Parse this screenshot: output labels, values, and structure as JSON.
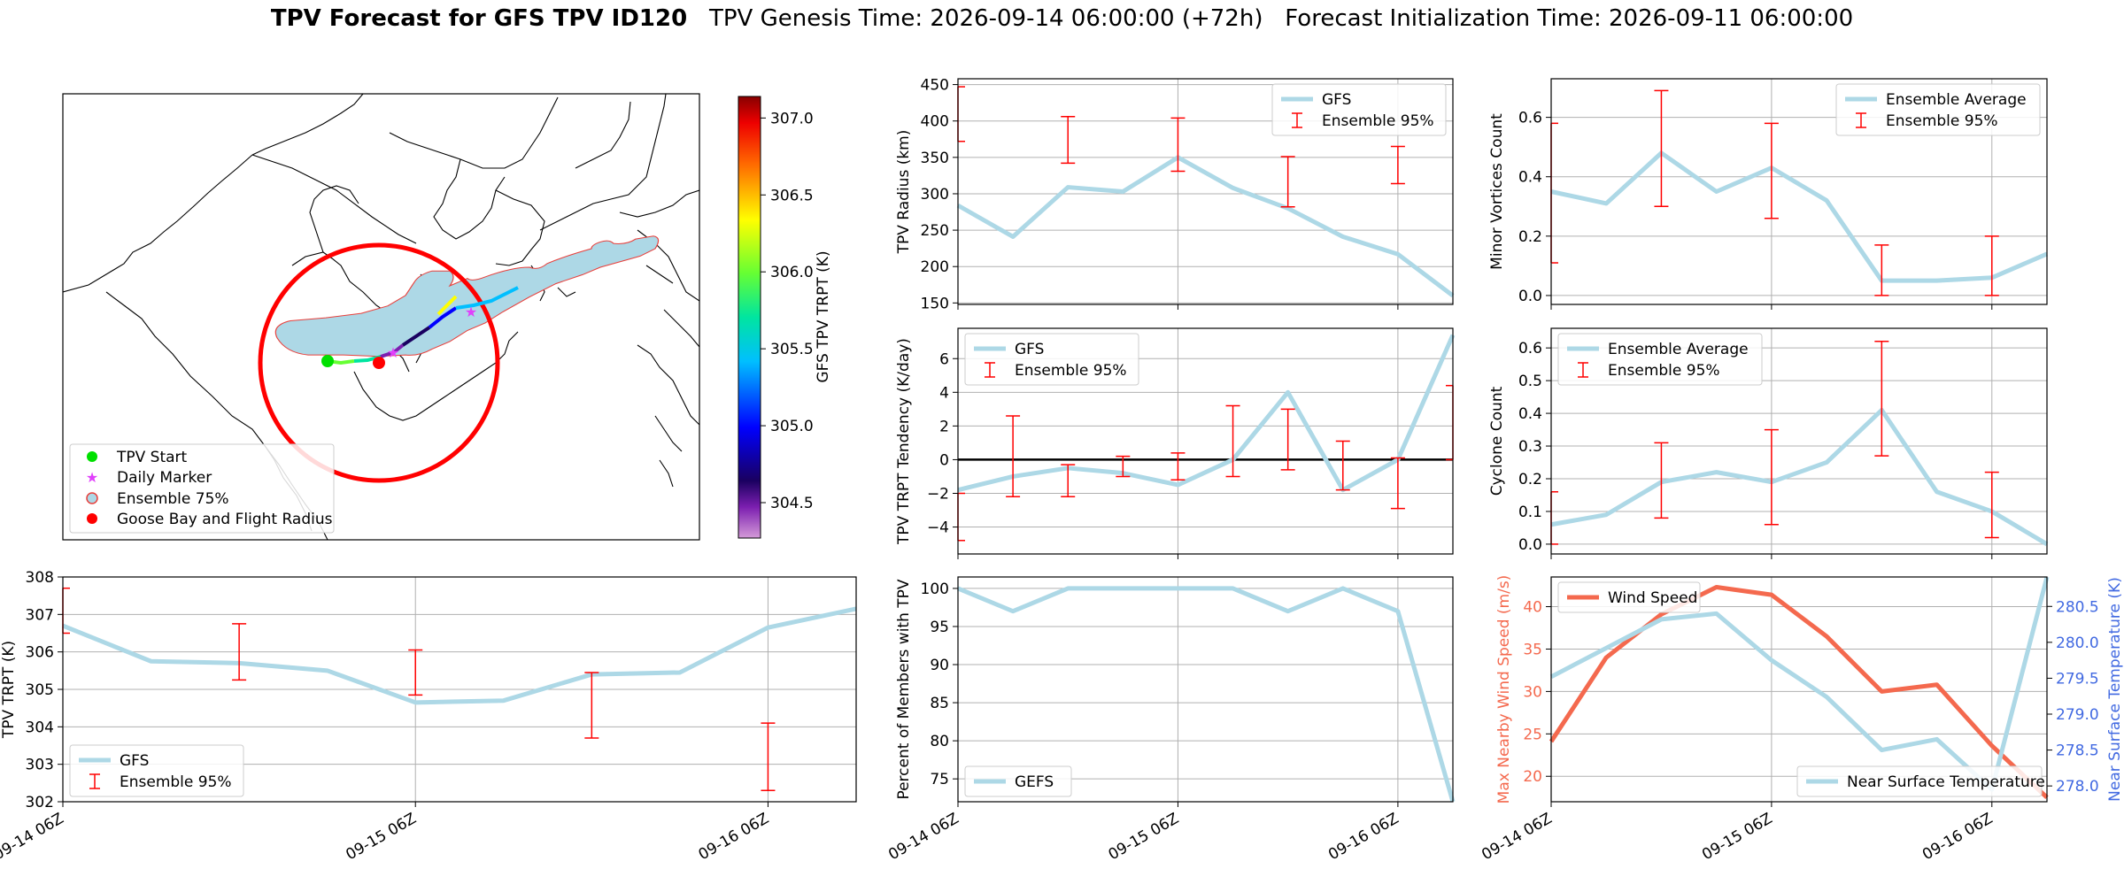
{
  "title": {
    "bold": "TPV Forecast for GFS TPV ID120",
    "genesis": "TPV Genesis Time: 2026-09-14 06:00:00 (+72h)",
    "init": "Forecast Initialization Time: 2026-09-11 06:00:00"
  },
  "colors": {
    "gfs_line": "#add8e6",
    "errorbar": "#ff0000",
    "wind": "#f4694e",
    "temp_axis": "#4169e1",
    "wind_axis": "#f4694e"
  },
  "chart_data": [
    {
      "id": "map",
      "type": "map",
      "legend": [
        "TPV Start",
        "Daily Marker",
        "Ensemble 75%",
        "Goose Bay and Flight Radius"
      ],
      "colorbar": {
        "label": "GFS TPV TRPT (K)",
        "ticks": [
          "307.0",
          "306.5",
          "306.0",
          "305.5",
          "305.0",
          "304.5"
        ],
        "range": [
          304.27,
          307.14
        ]
      }
    },
    {
      "id": "radius",
      "type": "line",
      "ylabel": "TPV Radius (km)",
      "yticks": [
        "150",
        "200",
        "250",
        "300",
        "350",
        "400",
        "450"
      ],
      "ylim": [
        148,
        458
      ],
      "x": [
        0,
        1,
        2,
        3,
        4,
        5,
        6,
        7,
        8,
        9
      ],
      "series": [
        {
          "name": "GFS",
          "values": [
            284,
            241,
            309,
            303,
            350,
            308,
            280,
            241,
            217,
            160
          ]
        }
      ],
      "errorbars": [
        {
          "x": 0,
          "low": 372,
          "high": 447
        },
        {
          "x": 2,
          "low": 342,
          "high": 406
        },
        {
          "x": 4,
          "low": 331,
          "high": 404
        },
        {
          "x": 6,
          "low": 282,
          "high": 351
        },
        {
          "x": 8,
          "low": 314,
          "high": 365
        }
      ],
      "errorbar_name": "Ensemble 95%",
      "legend": "top-right",
      "grid": true
    },
    {
      "id": "minor",
      "type": "line",
      "ylabel": "Minor Vortices Count",
      "yticks": [
        "0.0",
        "0.2",
        "0.4",
        "0.6"
      ],
      "ylim": [
        -0.03,
        0.73
      ],
      "x": [
        0,
        1,
        2,
        3,
        4,
        5,
        6,
        7,
        8,
        9
      ],
      "series": [
        {
          "name": "Ensemble Average",
          "values": [
            0.35,
            0.31,
            0.48,
            0.35,
            0.43,
            0.32,
            0.05,
            0.05,
            0.06,
            0.14
          ]
        }
      ],
      "errorbars": [
        {
          "x": 0,
          "low": 0.11,
          "high": 0.58
        },
        {
          "x": 2,
          "low": 0.3,
          "high": 0.69
        },
        {
          "x": 4,
          "low": 0.26,
          "high": 0.58
        },
        {
          "x": 6,
          "low": 0.0,
          "high": 0.17
        },
        {
          "x": 8,
          "low": 0.0,
          "high": 0.2
        }
      ],
      "errorbar_name": "Ensemble 95%",
      "legend": "top-right",
      "grid": true
    },
    {
      "id": "tendency",
      "type": "line",
      "ylabel": "TPV TRPT Tendency (K/day)",
      "yticks": [
        "−4",
        "−2",
        "0",
        "2",
        "4",
        "6"
      ],
      "ylim": [
        -5.6,
        7.8
      ],
      "x": [
        0,
        1,
        2,
        3,
        4,
        5,
        6,
        7,
        8,
        9
      ],
      "series": [
        {
          "name": "GFS",
          "values": [
            -1.8,
            -1.0,
            -0.5,
            -0.8,
            -1.5,
            0.0,
            4.0,
            -1.8,
            0.0,
            7.4
          ]
        }
      ],
      "zero_line": true,
      "errorbars": [
        {
          "x": 0,
          "low": -4.8,
          "high": -2.0
        },
        {
          "x": 1,
          "low": -2.2,
          "high": 2.6
        },
        {
          "x": 2,
          "low": -2.2,
          "high": -0.3
        },
        {
          "x": 3,
          "low": -1.0,
          "high": 0.2
        },
        {
          "x": 4,
          "low": -1.2,
          "high": 0.4
        },
        {
          "x": 5,
          "low": -1.0,
          "high": 3.2
        },
        {
          "x": 6,
          "low": -0.6,
          "high": 3.0
        },
        {
          "x": 7,
          "low": -1.8,
          "high": 1.1
        },
        {
          "x": 8,
          "low": -2.9,
          "high": 0.1
        },
        {
          "x": 9,
          "low": 0.0,
          "high": 4.4
        }
      ],
      "errorbar_name": "Ensemble 95%",
      "legend": "top-left",
      "grid": true
    },
    {
      "id": "cyclone",
      "type": "line",
      "ylabel": "Cyclone Count",
      "yticks": [
        "0.0",
        "0.1",
        "0.2",
        "0.3",
        "0.4",
        "0.5",
        "0.6"
      ],
      "ylim": [
        -0.03,
        0.66
      ],
      "x": [
        0,
        1,
        2,
        3,
        4,
        5,
        6,
        7,
        8,
        9
      ],
      "series": [
        {
          "name": "Ensemble Average",
          "values": [
            0.06,
            0.09,
            0.19,
            0.22,
            0.19,
            0.25,
            0.41,
            0.16,
            0.1,
            0.0
          ]
        }
      ],
      "errorbars": [
        {
          "x": 0,
          "low": 0.0,
          "high": 0.16
        },
        {
          "x": 2,
          "low": 0.08,
          "high": 0.31
        },
        {
          "x": 4,
          "low": 0.06,
          "high": 0.35
        },
        {
          "x": 6,
          "low": 0.27,
          "high": 0.62
        },
        {
          "x": 8,
          "low": 0.02,
          "high": 0.22
        }
      ],
      "errorbar_name": "Ensemble 95%",
      "legend": "top-left",
      "grid": true
    },
    {
      "id": "trpt",
      "type": "line",
      "ylabel": "TPV TRPT (K)",
      "yticks": [
        "302",
        "303",
        "304",
        "305",
        "306",
        "307",
        "308"
      ],
      "ylim": [
        302,
        308
      ],
      "x": [
        0,
        1,
        2,
        3,
        4,
        5,
        6,
        7,
        8,
        9
      ],
      "xticks": [
        {
          "x": 0,
          "label": "09-14 06Z"
        },
        {
          "x": 4,
          "label": "09-15 06Z"
        },
        {
          "x": 8,
          "label": "09-16 06Z"
        }
      ],
      "series": [
        {
          "name": "GFS",
          "values": [
            306.7,
            305.75,
            305.7,
            305.5,
            304.65,
            304.7,
            305.4,
            305.45,
            306.65,
            307.15
          ]
        }
      ],
      "errorbars": [
        {
          "x": 0,
          "low": 306.5,
          "high": 307.7
        },
        {
          "x": 2,
          "low": 305.25,
          "high": 306.75
        },
        {
          "x": 4,
          "low": 304.85,
          "high": 306.05
        },
        {
          "x": 6,
          "low": 303.7,
          "high": 305.45
        },
        {
          "x": 8,
          "low": 302.3,
          "high": 304.1
        }
      ],
      "errorbar_name": "Ensemble 95%",
      "legend": "bottom-left",
      "grid": true
    },
    {
      "id": "percent",
      "type": "line",
      "ylabel": "Percent of Members with TPV",
      "yticks": [
        "75",
        "80",
        "85",
        "90",
        "95",
        "100"
      ],
      "ylim": [
        72,
        101.5
      ],
      "x": [
        0,
        1,
        2,
        3,
        4,
        5,
        6,
        7,
        8,
        9
      ],
      "xticks": [
        {
          "x": 0,
          "label": "09-14 06Z"
        },
        {
          "x": 4,
          "label": "09-15 06Z"
        },
        {
          "x": 8,
          "label": "09-16 06Z"
        }
      ],
      "series": [
        {
          "name": "GEFS",
          "values": [
            100,
            97,
            100,
            100,
            100,
            100,
            97,
            100,
            97,
            72
          ]
        }
      ],
      "legend": "bottom-left",
      "grid": true
    },
    {
      "id": "wind",
      "type": "line",
      "ylabel": "Max Nearby Wind Speed (m/s)",
      "ylabel_right": "Near Surface Temperature (K)",
      "yticks": [
        "20",
        "25",
        "30",
        "35",
        "40"
      ],
      "ylim": [
        17,
        43.5
      ],
      "yticks_right": [
        "278.0",
        "278.5",
        "279.0",
        "279.5",
        "280.0",
        "280.5"
      ],
      "ylim_right": [
        277.78,
        280.91
      ],
      "x": [
        0,
        1,
        2,
        3,
        4,
        5,
        6,
        7,
        8,
        9
      ],
      "xticks": [
        {
          "x": 0,
          "label": "09-14 06Z"
        },
        {
          "x": 4,
          "label": "09-15 06Z"
        },
        {
          "x": 8,
          "label": "09-16 06Z"
        }
      ],
      "series": [
        {
          "name": "Wind Speed",
          "axis": "left",
          "values": [
            24.1,
            34.0,
            39.1,
            42.3,
            41.4,
            36.5,
            30.0,
            30.8,
            23.6,
            17.5
          ]
        },
        {
          "name": "Near Surface Temperature",
          "axis": "right",
          "values": [
            279.52,
            279.92,
            280.32,
            280.4,
            279.75,
            279.24,
            278.5,
            278.65,
            277.95,
            280.91
          ]
        }
      ],
      "legend": "top-left / bottom-right",
      "grid": true
    }
  ]
}
